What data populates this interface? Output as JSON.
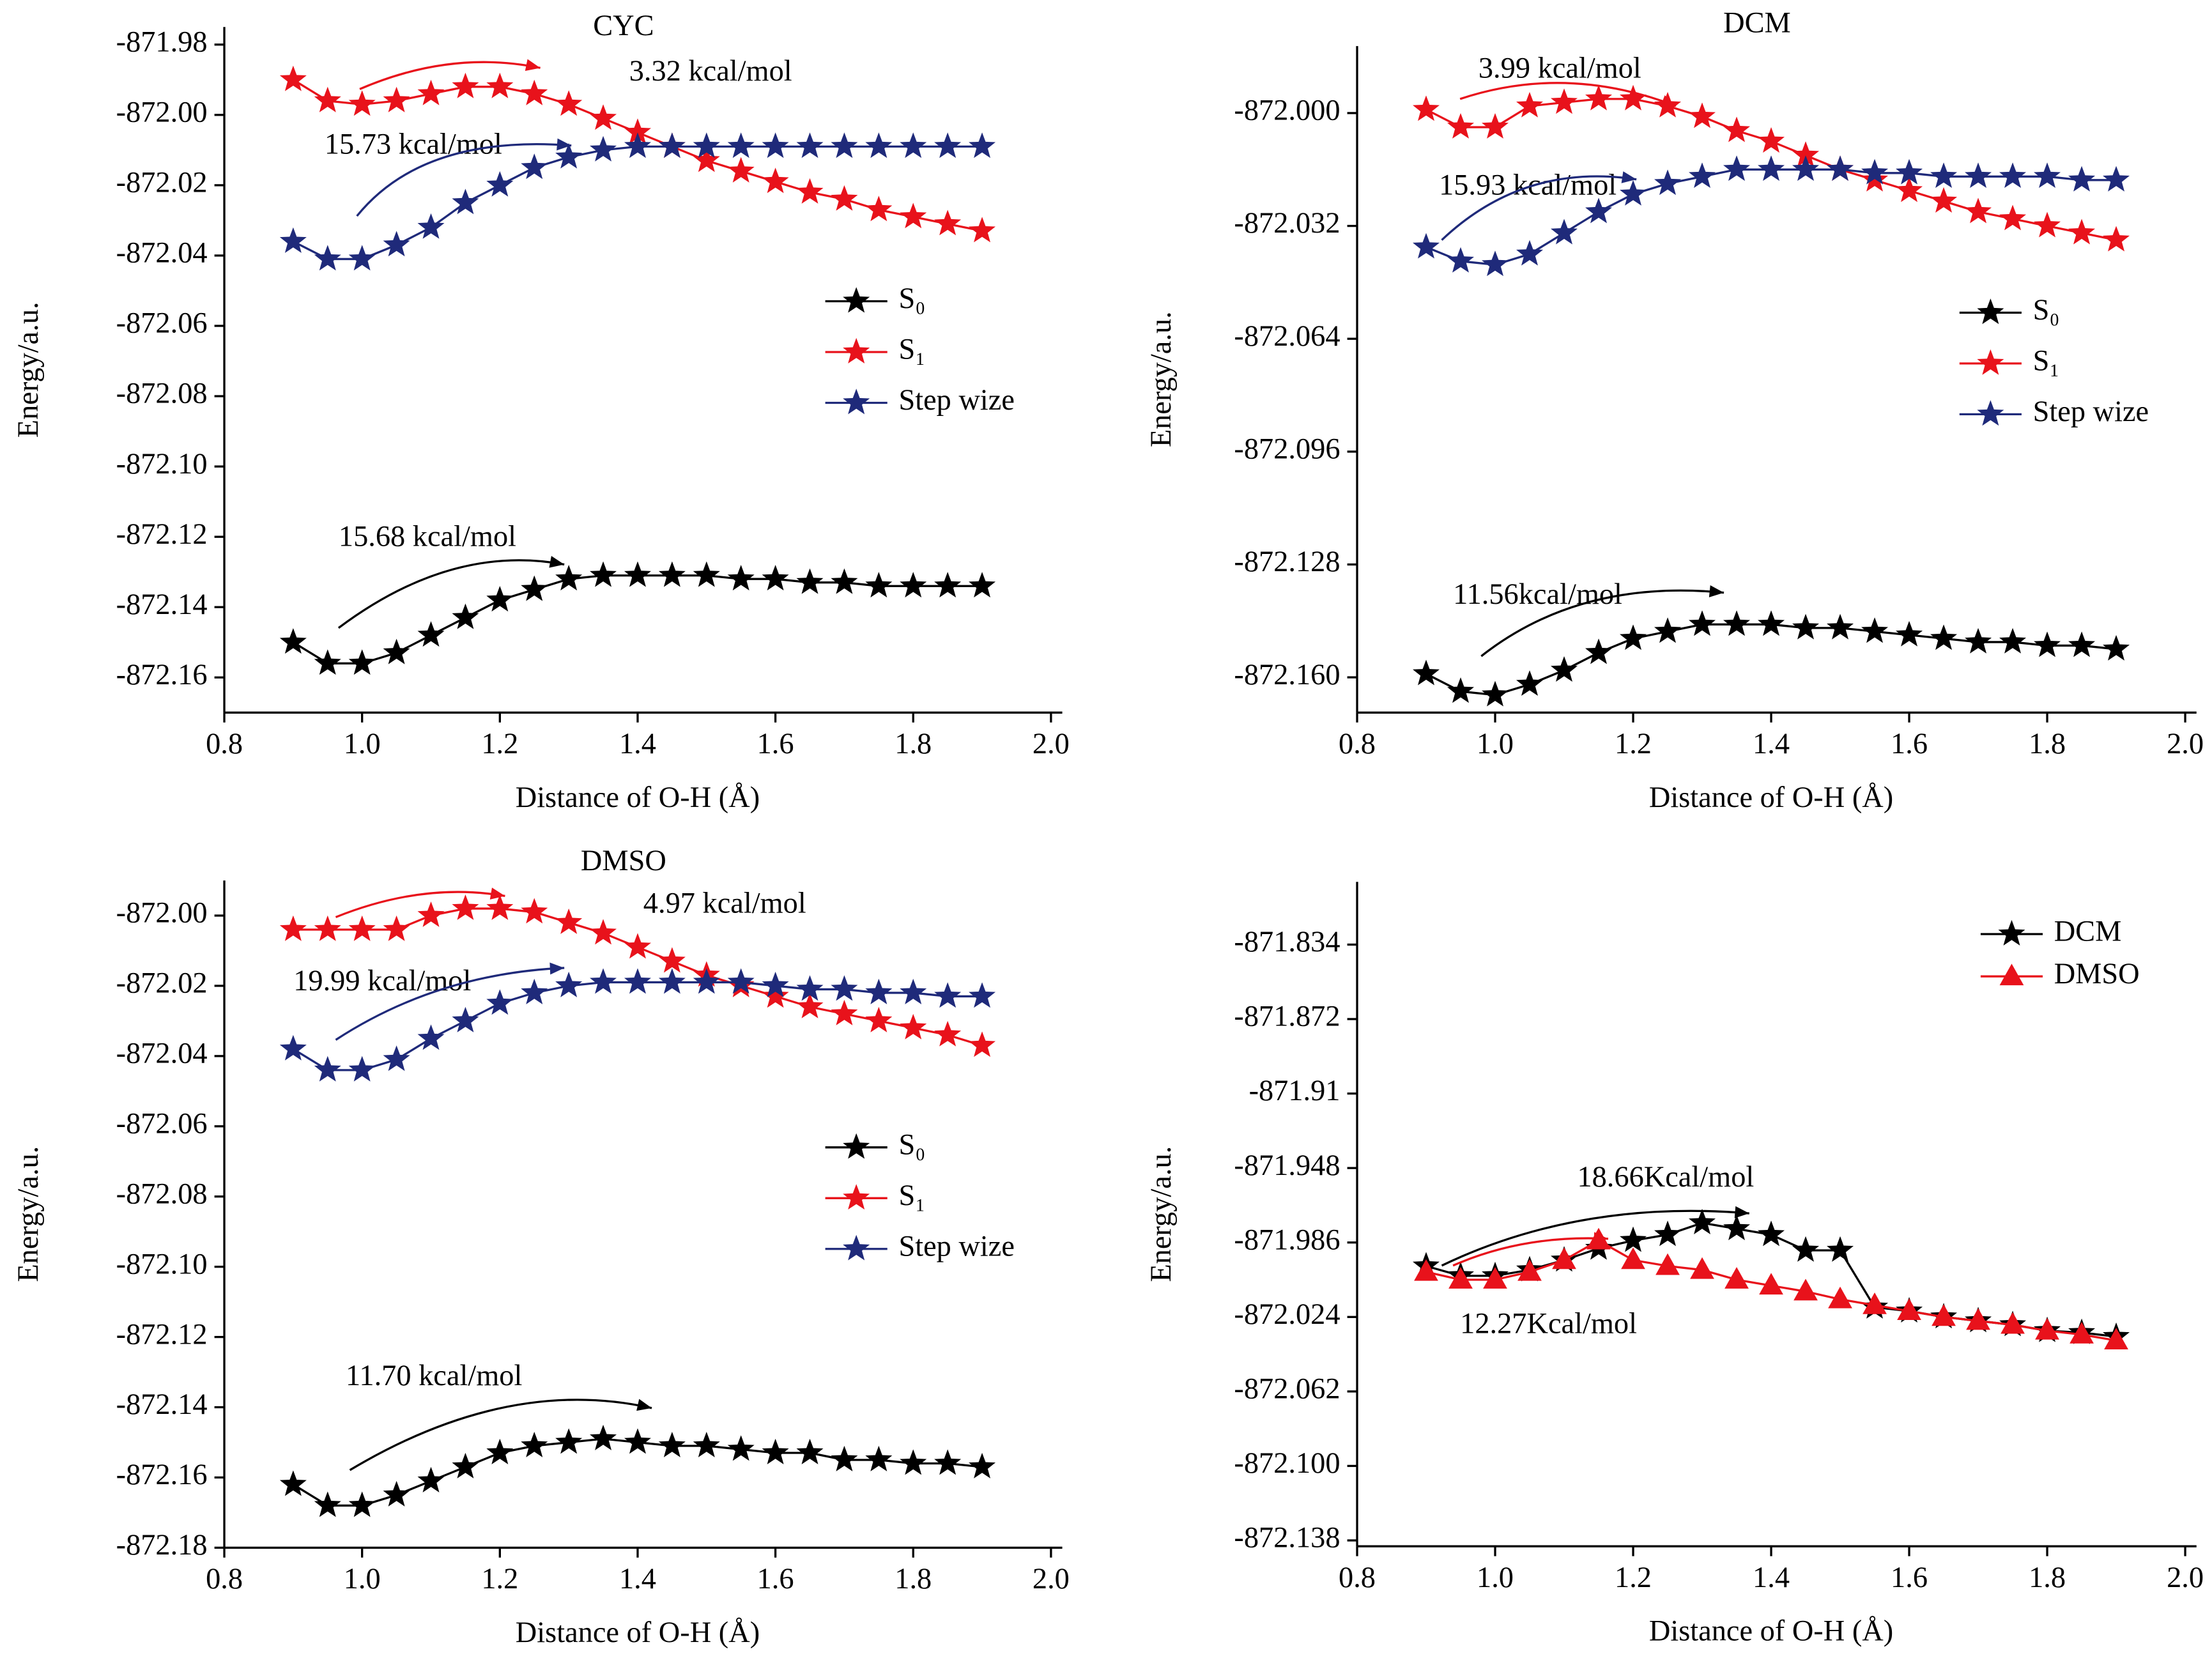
{
  "chart_data": [
    {
      "type": "line",
      "title": "CYC",
      "xlabel": "Distance of O-H (Å)",
      "ylabel": "Energy/a.u.",
      "x": [
        0.9,
        0.95,
        1.0,
        1.05,
        1.1,
        1.15,
        1.2,
        1.25,
        1.3,
        1.35,
        1.4,
        1.45,
        1.5,
        1.55,
        1.6,
        1.65,
        1.7,
        1.75,
        1.8,
        1.85,
        1.9
      ],
      "xlim": [
        0.8,
        2.0
      ],
      "xticks": [
        0.8,
        {
          "value": 1.0,
          "label": "1.0"
        },
        1.2,
        1.4,
        1.6,
        1.8,
        {
          "value": 2.0,
          "label": "2.0"
        }
      ],
      "ylim": [
        -872.17,
        -871.975
      ],
      "yticks": [
        -871.98,
        {
          "value": -872.0,
          "label": "-872.00"
        },
        -872.02,
        -872.04,
        -872.06,
        -872.08,
        {
          "value": -872.1,
          "label": "-872.10"
        },
        -872.12,
        -872.14,
        -872.16
      ],
      "legend": "center right",
      "series": [
        {
          "name": "S₀",
          "color": "#000000",
          "marker": "star",
          "values": [
            -872.15,
            -872.156,
            -872.156,
            -872.153,
            -872.148,
            -872.143,
            -872.138,
            -872.135,
            -872.132,
            -872.131,
            -872.131,
            -872.131,
            -872.131,
            -872.132,
            -872.132,
            -872.133,
            -872.133,
            -872.134,
            -872.134,
            -872.134,
            -872.134
          ]
        },
        {
          "name": "S₁",
          "color": "#e8121b",
          "marker": "star",
          "values": [
            -871.99,
            -871.996,
            -871.997,
            -871.996,
            -871.994,
            -871.992,
            -871.992,
            -871.994,
            -871.997,
            -872.001,
            -872.005,
            -872.009,
            -872.013,
            -872.016,
            -872.019,
            -872.022,
            -872.024,
            -872.027,
            -872.029,
            -872.031,
            -872.033
          ]
        },
        {
          "name": "Step wize",
          "color": "#1f2a7a",
          "marker": "star",
          "values": [
            -872.036,
            -872.041,
            -872.041,
            -872.037,
            -872.032,
            -872.025,
            -872.02,
            -872.015,
            -872.012,
            -872.01,
            -872.009,
            -872.009,
            -872.009,
            -872.009,
            -872.009,
            -872.009,
            -872.009,
            -872.009,
            -872.009,
            -872.009,
            -872.009
          ]
        }
      ],
      "annotations": [
        {
          "text": "3.32 kcal/mol",
          "color": "#e8121b"
        },
        {
          "text": "15.73 kcal/mol",
          "color": "#1f2a7a"
        },
        {
          "text": "15.68 kcal/mol",
          "color": "#000000"
        }
      ]
    },
    {
      "type": "line",
      "title": "DCM",
      "xlabel": "Distance of O-H (Å)",
      "ylabel": "Energy/a.u.",
      "x": [
        0.9,
        0.95,
        1.0,
        1.05,
        1.1,
        1.15,
        1.2,
        1.25,
        1.3,
        1.35,
        1.4,
        1.45,
        1.5,
        1.55,
        1.6,
        1.65,
        1.7,
        1.75,
        1.8,
        1.85,
        1.9
      ],
      "xlim": [
        0.8,
        2.0
      ],
      "xticks": [
        0.8,
        {
          "value": 1.0,
          "label": "1.0"
        },
        1.2,
        1.4,
        1.6,
        1.8,
        {
          "value": 2.0,
          "label": "2.0"
        }
      ],
      "ylim": [
        -872.17,
        -871.981
      ],
      "yticks": [
        {
          "value": -872.0,
          "label": "-872.000"
        },
        -872.032,
        -872.064,
        -872.096,
        -872.128,
        {
          "value": -872.16,
          "label": "-872.160"
        }
      ],
      "legend": "center right",
      "series": [
        {
          "name": "S₀",
          "color": "#000000",
          "marker": "star",
          "values": [
            -872.159,
            -872.164,
            -872.165,
            -872.162,
            -872.158,
            -872.153,
            -872.149,
            -872.147,
            -872.145,
            -872.145,
            -872.145,
            -872.146,
            -872.146,
            -872.147,
            -872.148,
            -872.149,
            -872.15,
            -872.15,
            -872.151,
            -872.151,
            -872.152
          ]
        },
        {
          "name": "S₁",
          "color": "#e8121b",
          "marker": "star",
          "values": [
            -871.999,
            -872.004,
            -872.004,
            -871.998,
            -871.997,
            -871.996,
            -871.996,
            -871.998,
            -872.001,
            -872.005,
            -872.008,
            -872.012,
            -872.016,
            -872.019,
            -872.022,
            -872.025,
            -872.028,
            -872.03,
            -872.032,
            -872.034,
            -872.036
          ]
        },
        {
          "name": "Step wize",
          "color": "#1f2a7a",
          "marker": "star",
          "values": [
            -872.038,
            -872.042,
            -872.043,
            -872.04,
            -872.034,
            -872.028,
            -872.023,
            -872.02,
            -872.018,
            -872.016,
            -872.016,
            -872.016,
            -872.016,
            -872.017,
            -872.017,
            -872.018,
            -872.018,
            -872.018,
            -872.018,
            -872.019,
            -872.019
          ]
        }
      ],
      "annotations": [
        {
          "text": "3.99 kcal/mol",
          "color": "#e8121b"
        },
        {
          "text": "15.93 kcal/mol",
          "color": "#1f2a7a"
        },
        {
          "text": "11.56kcal/mol",
          "color": "#000000"
        }
      ]
    },
    {
      "type": "line",
      "title": "DMSO",
      "xlabel": "Distance of O-H (Å)",
      "ylabel": "Energy/a.u.",
      "x": [
        0.9,
        0.95,
        1.0,
        1.05,
        1.1,
        1.15,
        1.2,
        1.25,
        1.3,
        1.35,
        1.4,
        1.45,
        1.5,
        1.55,
        1.6,
        1.65,
        1.7,
        1.75,
        1.8,
        1.85,
        1.9
      ],
      "xlim": [
        0.8,
        2.0
      ],
      "xticks": [
        0.8,
        {
          "value": 1.0,
          "label": "1.0"
        },
        1.2,
        1.4,
        1.6,
        1.8,
        {
          "value": 2.0,
          "label": "2.0"
        }
      ],
      "ylim": [
        -872.18,
        -871.99
      ],
      "yticks": [
        {
          "value": -872.0,
          "label": "-872.00"
        },
        -872.02,
        -872.04,
        -872.06,
        -872.08,
        {
          "value": -872.1,
          "label": "-872.10"
        },
        -872.12,
        -872.14,
        -872.16,
        -872.18
      ],
      "legend": "center right",
      "series": [
        {
          "name": "S₀",
          "color": "#000000",
          "marker": "star",
          "values": [
            -872.162,
            -872.168,
            -872.168,
            -872.165,
            -872.161,
            -872.157,
            -872.153,
            -872.151,
            -872.15,
            -872.149,
            -872.15,
            -872.151,
            -872.151,
            -872.152,
            -872.153,
            -872.153,
            -872.155,
            -872.155,
            -872.156,
            -872.156,
            -872.157
          ]
        },
        {
          "name": "S₁",
          "color": "#e8121b",
          "marker": "star",
          "values": [
            -872.004,
            -872.004,
            -872.004,
            -872.004,
            -872.0,
            -871.998,
            -871.998,
            -871.999,
            -872.002,
            -872.005,
            -872.009,
            -872.013,
            -872.017,
            -872.02,
            -872.023,
            -872.026,
            -872.028,
            -872.03,
            -872.032,
            -872.034,
            -872.037
          ]
        },
        {
          "name": "Step wize",
          "color": "#1f2a7a",
          "marker": "star",
          "values": [
            -872.038,
            -872.044,
            -872.044,
            -872.041,
            -872.035,
            -872.03,
            -872.025,
            -872.022,
            -872.02,
            -872.019,
            -872.019,
            -872.019,
            -872.019,
            -872.019,
            -872.02,
            -872.021,
            -872.021,
            -872.022,
            -872.022,
            -872.023,
            -872.023
          ]
        }
      ],
      "annotations": [
        {
          "text": "4.97 kcal/mol",
          "color": "#e8121b"
        },
        {
          "text": "19.99 kcal/mol",
          "color": "#1f2a7a"
        },
        {
          "text": "11.70 kcal/mol",
          "color": "#000000"
        }
      ]
    },
    {
      "type": "line",
      "xlabel": "Distance of O-H (Å)",
      "ylabel": "Energy/a.u.",
      "x": [
        0.9,
        0.95,
        1.0,
        1.05,
        1.1,
        1.15,
        1.2,
        1.25,
        1.3,
        1.35,
        1.4,
        1.45,
        1.5,
        1.55,
        1.6,
        1.65,
        1.7,
        1.75,
        1.8,
        1.85,
        1.9
      ],
      "xlim": [
        0.8,
        2.0
      ],
      "xticks": [
        0.8,
        {
          "value": 1.0,
          "label": "1.0"
        },
        1.2,
        1.4,
        1.6,
        1.8,
        {
          "value": 2.0,
          "label": "2.0"
        }
      ],
      "ylim": [
        -872.141,
        -871.802
      ],
      "yticks": [
        -871.834,
        -871.872,
        -871.91,
        -871.948,
        -871.986,
        -872.024,
        -872.062,
        {
          "value": -872.1,
          "label": "-872.100"
        },
        -872.138
      ],
      "legend": "upper right",
      "series": [
        {
          "name": "DCM",
          "color": "#000000",
          "marker": "star",
          "values": [
            -871.998,
            -872.003,
            -872.003,
            -872.0,
            -871.995,
            -871.989,
            -871.985,
            -871.982,
            -871.976,
            -871.979,
            -871.982,
            -871.99,
            -871.99,
            -872.019,
            -872.021,
            -872.024,
            -872.026,
            -872.028,
            -872.031,
            -872.032,
            -872.034
          ]
        },
        {
          "name": "DMSO",
          "color": "#e8121b",
          "marker": "triangle",
          "values": [
            -872.001,
            -872.005,
            -872.005,
            -872.001,
            -871.995,
            -871.985,
            -871.995,
            -871.998,
            -872.0,
            -872.005,
            -872.008,
            -872.011,
            -872.015,
            -872.018,
            -872.021,
            -872.024,
            -872.026,
            -872.028,
            -872.031,
            -872.033,
            -872.036
          ]
        }
      ],
      "annotations": [
        {
          "text": "18.66Kcal/mol",
          "color": "#000000"
        },
        {
          "text": "12.27Kcal/mol",
          "color": "#e8121b"
        }
      ]
    }
  ]
}
